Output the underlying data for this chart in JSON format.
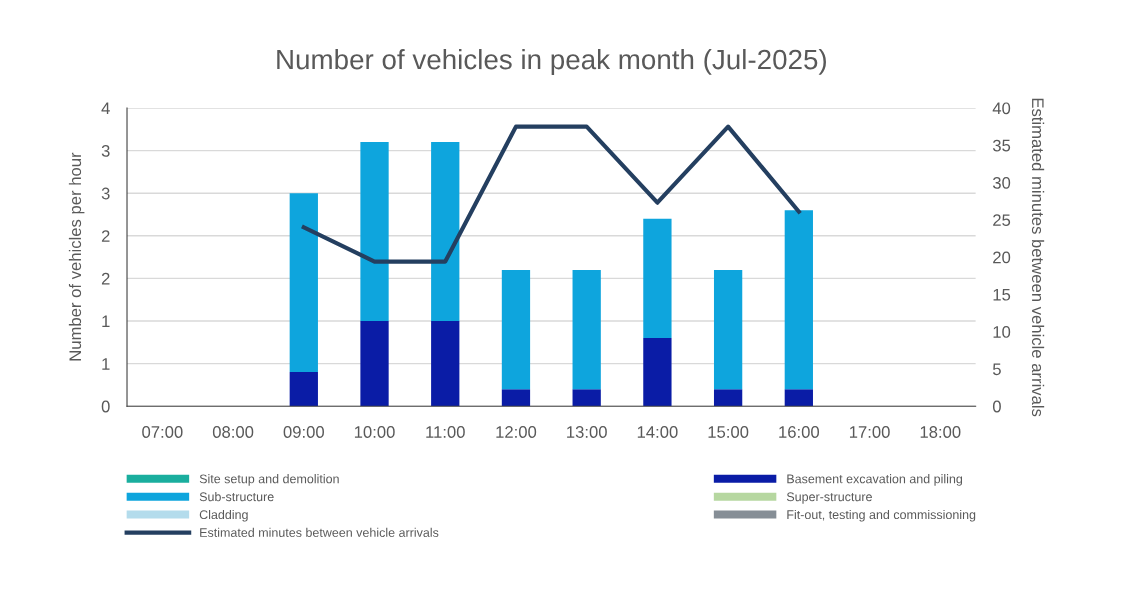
{
  "chart_data": {
    "type": "bar",
    "stacked": true,
    "title": "Number of vehicles in peak month (Jul-2025)",
    "ylabel": "Number of vehicles per hour",
    "y2label": "Estimated minutes between vehicle arrivals",
    "categories": [
      "07:00",
      "08:00",
      "09:00",
      "10:00",
      "11:00",
      "12:00",
      "13:00",
      "14:00",
      "15:00",
      "16:00",
      "17:00",
      "18:00"
    ],
    "series": [
      {
        "name": "Site setup and demolition",
        "color": "#1aae9e",
        "values": [
          0,
          0,
          0,
          0,
          0,
          0,
          0,
          0,
          0,
          0,
          0,
          0
        ]
      },
      {
        "name": "Basement excavation and piling",
        "color": "#0a1ca6",
        "values": [
          0,
          0,
          0.4,
          1.0,
          1.0,
          0.2,
          0.2,
          0.8,
          0.2,
          0.2,
          0,
          0
        ]
      },
      {
        "name": "Sub-structure",
        "color": "#0ea5dd",
        "values": [
          0,
          0,
          2.1,
          2.1,
          2.1,
          1.4,
          1.4,
          1.4,
          1.4,
          2.1,
          0,
          0
        ]
      },
      {
        "name": "Super-structure",
        "color": "#b6d7a0",
        "values": [
          0,
          0,
          0,
          0,
          0,
          0,
          0,
          0,
          0,
          0,
          0,
          0
        ]
      },
      {
        "name": "Cladding",
        "color": "#b4dcec",
        "values": [
          0,
          0,
          0,
          0,
          0,
          0,
          0,
          0,
          0,
          0,
          0,
          0
        ]
      },
      {
        "name": "Fit-out, testing and commissioning",
        "color": "#868e96",
        "values": [
          0,
          0,
          0,
          0,
          0,
          0,
          0,
          0,
          0,
          0,
          0,
          0
        ]
      },
      {
        "name": "Estimated minutes between vehicle arrivals",
        "type": "line",
        "axis": "y2",
        "color": "#243f60",
        "values": [
          null,
          null,
          24,
          19.4,
          19.4,
          37.5,
          37.5,
          27.3,
          37.5,
          26.1,
          null,
          null
        ]
      }
    ],
    "ylim": [
      0,
      3.5
    ],
    "yticks": [
      0,
      {
        "value": 0.5,
        "label": "1"
      },
      1,
      {
        "value": 1.5,
        "label": "2"
      },
      2,
      {
        "value": 2.5,
        "label": "3"
      },
      3,
      {
        "value": 3.5,
        "label": "4"
      }
    ],
    "y2lim": [
      0,
      40
    ],
    "y2ticks": [
      0,
      5,
      10,
      15,
      20,
      25,
      30,
      35,
      40
    ],
    "grid": "y",
    "legend": "bottom",
    "line_style": "solid",
    "marker": "none"
  }
}
